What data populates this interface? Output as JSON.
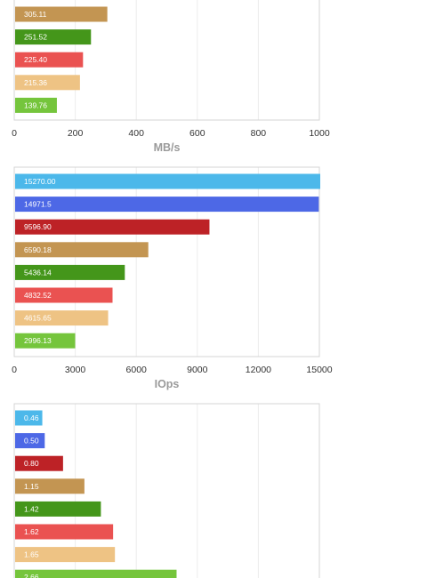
{
  "colors": [
    "#4cb8ea",
    "#4d68e6",
    "#bd2226",
    "#c39552",
    "#44961a",
    "#ea5251",
    "#eec384",
    "#75c53c"
  ],
  "chart_data": [
    {
      "type": "bar",
      "orientation": "horizontal",
      "xlabel": "MB/s",
      "xlim": [
        0,
        1000
      ],
      "ticks": [
        "0",
        "200",
        "400",
        "600",
        "800",
        "1000"
      ],
      "tick_values": [
        0,
        200,
        400,
        600,
        800,
        1000
      ],
      "grid": true,
      "bars": [
        {
          "label": "305.11",
          "value": 305.11,
          "color_index": 3
        },
        {
          "label": "251.52",
          "value": 251.52,
          "color_index": 4
        },
        {
          "label": "225.40",
          "value": 225.4,
          "color_index": 5
        },
        {
          "label": "215.36",
          "value": 215.36,
          "color_index": 6
        },
        {
          "label": "139.76",
          "value": 139.76,
          "color_index": 7
        }
      ]
    },
    {
      "type": "bar",
      "orientation": "horizontal",
      "xlabel": "IOps",
      "xlim": [
        0,
        15000
      ],
      "ticks": [
        "0",
        "3000",
        "6000",
        "9000",
        "12000",
        "15000"
      ],
      "tick_values": [
        0,
        3000,
        6000,
        9000,
        12000,
        15000
      ],
      "grid": true,
      "bars": [
        {
          "label": "15270.00",
          "value": 15270.0,
          "color_index": 0
        },
        {
          "label": "14971.5",
          "value": 14971.5,
          "color_index": 1
        },
        {
          "label": "9596.90",
          "value": 9596.9,
          "color_index": 2
        },
        {
          "label": "6590.18",
          "value": 6590.18,
          "color_index": 3
        },
        {
          "label": "5436.14",
          "value": 5436.14,
          "color_index": 4
        },
        {
          "label": "4832.52",
          "value": 4832.52,
          "color_index": 5
        },
        {
          "label": "4615.65",
          "value": 4615.65,
          "color_index": 6
        },
        {
          "label": "2996.13",
          "value": 2996.13,
          "color_index": 7
        }
      ]
    },
    {
      "type": "bar",
      "orientation": "horizontal",
      "xlabel": "",
      "xlim": [
        0,
        5
      ],
      "ticks": [],
      "tick_values": [],
      "grid": true,
      "bars": [
        {
          "label": "0.46",
          "value": 0.46,
          "color_index": 0
        },
        {
          "label": "0.50",
          "value": 0.5,
          "color_index": 1
        },
        {
          "label": "0.80",
          "value": 0.8,
          "color_index": 2
        },
        {
          "label": "1.15",
          "value": 1.15,
          "color_index": 3
        },
        {
          "label": "1.42",
          "value": 1.42,
          "color_index": 4
        },
        {
          "label": "1.62",
          "value": 1.62,
          "color_index": 5
        },
        {
          "label": "1.65",
          "value": 1.65,
          "color_index": 6
        },
        {
          "label": "2.66",
          "value": 2.66,
          "color_index": 7
        }
      ]
    }
  ]
}
